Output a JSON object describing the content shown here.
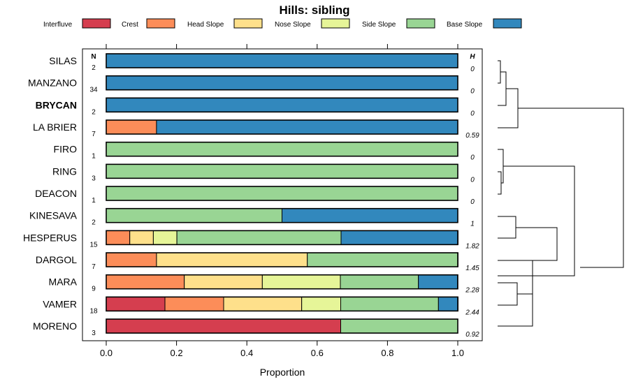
{
  "chart_data": {
    "type": "stacked-bar-horizontal",
    "title": "Hills: sibling",
    "xlabel": "Proportion",
    "xlim": [
      0,
      1
    ],
    "xticks": [
      "0.0",
      "0.2",
      "0.4",
      "0.6",
      "0.8",
      "1.0"
    ],
    "n_header": "N",
    "h_header": "H",
    "legend": [
      {
        "name": "Interfluve",
        "color": "#d53e4f"
      },
      {
        "name": "Crest",
        "color": "#fc8d59"
      },
      {
        "name": "Head Slope",
        "color": "#fee08b"
      },
      {
        "name": "Nose Slope",
        "color": "#e6f598"
      },
      {
        "name": "Side Slope",
        "color": "#99d594"
      },
      {
        "name": "Base Slope",
        "color": "#3288bd"
      }
    ],
    "rows": [
      {
        "label": "SILAS",
        "n": "2",
        "h": "0",
        "bold": false,
        "values": [
          0,
          0,
          0,
          0,
          0,
          1
        ]
      },
      {
        "label": "MANZANO",
        "n": "34",
        "h": "0",
        "bold": false,
        "values": [
          0,
          0,
          0,
          0,
          0,
          1
        ]
      },
      {
        "label": "BRYCAN",
        "n": "2",
        "h": "0",
        "bold": true,
        "values": [
          0,
          0,
          0,
          0,
          0,
          1
        ]
      },
      {
        "label": "LA BRIER",
        "n": "7",
        "h": "0.59",
        "bold": false,
        "values": [
          0,
          0.143,
          0,
          0,
          0,
          0.857
        ]
      },
      {
        "label": "FIRO",
        "n": "1",
        "h": "0",
        "bold": false,
        "values": [
          0,
          0,
          0,
          0,
          1,
          0
        ]
      },
      {
        "label": "RING",
        "n": "3",
        "h": "0",
        "bold": false,
        "values": [
          0,
          0,
          0,
          0,
          1,
          0
        ]
      },
      {
        "label": "DEACON",
        "n": "1",
        "h": "0",
        "bold": false,
        "values": [
          0,
          0,
          0,
          0,
          1,
          0
        ]
      },
      {
        "label": "KINESAVA",
        "n": "2",
        "h": "1",
        "bold": false,
        "values": [
          0,
          0,
          0,
          0,
          0.5,
          0.5
        ]
      },
      {
        "label": "HESPERUS",
        "n": "15",
        "h": "1.82",
        "bold": false,
        "values": [
          0,
          0.067,
          0.067,
          0.067,
          0.467,
          0.333
        ]
      },
      {
        "label": "DARGOL",
        "n": "7",
        "h": "1.45",
        "bold": false,
        "values": [
          0,
          0.143,
          0.429,
          0,
          0.429,
          0
        ]
      },
      {
        "label": "MARA",
        "n": "9",
        "h": "2.28",
        "bold": false,
        "values": [
          0,
          0.222,
          0.222,
          0.222,
          0.222,
          0.111
        ]
      },
      {
        "label": "VAMER",
        "n": "18",
        "h": "2.44",
        "bold": false,
        "values": [
          0.167,
          0.167,
          0.222,
          0.111,
          0.278,
          0.056
        ]
      },
      {
        "label": "MORENO",
        "n": "3",
        "h": "0.92",
        "bold": false,
        "values": [
          0.667,
          0,
          0,
          0,
          0.333,
          0
        ]
      }
    ]
  }
}
